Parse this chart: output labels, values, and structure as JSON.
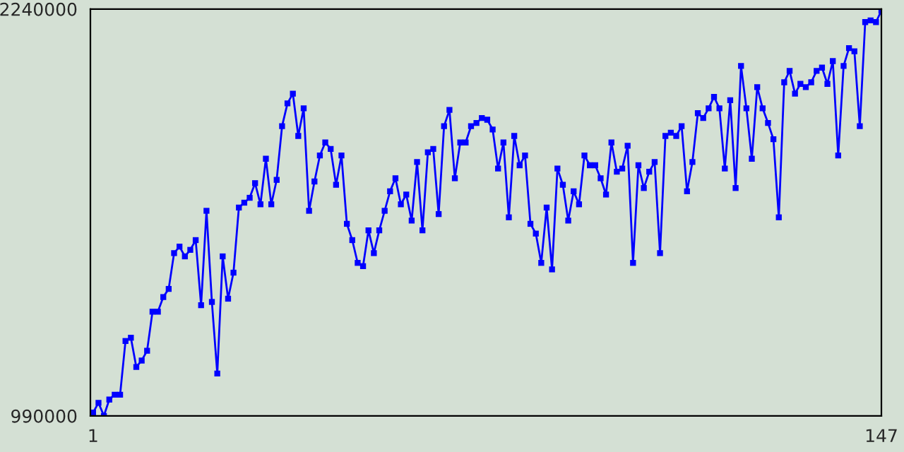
{
  "chart_data": {
    "type": "line",
    "x": [
      1,
      2,
      3,
      4,
      5,
      6,
      7,
      8,
      9,
      10,
      11,
      12,
      13,
      14,
      15,
      16,
      17,
      18,
      19,
      20,
      21,
      22,
      23,
      24,
      25,
      26,
      27,
      28,
      29,
      30,
      31,
      32,
      33,
      34,
      35,
      36,
      37,
      38,
      39,
      40,
      41,
      42,
      43,
      44,
      45,
      46,
      47,
      48,
      49,
      50,
      51,
      52,
      53,
      54,
      55,
      56,
      57,
      58,
      59,
      60,
      61,
      62,
      63,
      64,
      65,
      66,
      67,
      68,
      69,
      70,
      71,
      72,
      73,
      74,
      75,
      76,
      77,
      78,
      79,
      80,
      81,
      82,
      83,
      84,
      85,
      86,
      87,
      88,
      89,
      90,
      91,
      92,
      93,
      94,
      95,
      96,
      97,
      98,
      99,
      100,
      101,
      102,
      103,
      104,
      105,
      106,
      107,
      108,
      109,
      110,
      111,
      112,
      113,
      114,
      115,
      116,
      117,
      118,
      119,
      120,
      121,
      122,
      123,
      124,
      125,
      126,
      127,
      128,
      129,
      130,
      131,
      132,
      133,
      134,
      135,
      136,
      137,
      138,
      139,
      140,
      141,
      142,
      143,
      144,
      145,
      146,
      147
    ],
    "series": [
      {
        "color": "#0000ff",
        "values": [
          1000000,
          1030000,
          990000,
          1040000,
          1055000,
          1055000,
          1220000,
          1230000,
          1140000,
          1160000,
          1190000,
          1310000,
          1310000,
          1355000,
          1380000,
          1490000,
          1510000,
          1480000,
          1500000,
          1530000,
          1330000,
          1620000,
          1340000,
          1120000,
          1480000,
          1350000,
          1430000,
          1630000,
          1645000,
          1660000,
          1705000,
          1640000,
          1780000,
          1640000,
          1715000,
          1880000,
          1950000,
          1980000,
          1850000,
          1935000,
          1620000,
          1710000,
          1790000,
          1830000,
          1810000,
          1700000,
          1790000,
          1580000,
          1530000,
          1460000,
          1450000,
          1560000,
          1490000,
          1560000,
          1620000,
          1680000,
          1720000,
          1640000,
          1670000,
          1590000,
          1770000,
          1560000,
          1800000,
          1810000,
          1610000,
          1880000,
          1930000,
          1720000,
          1830000,
          1830000,
          1880000,
          1890000,
          1905000,
          1900000,
          1870000,
          1750000,
          1830000,
          1600000,
          1850000,
          1760000,
          1790000,
          1580000,
          1550000,
          1460000,
          1630000,
          1440000,
          1750000,
          1700000,
          1590000,
          1680000,
          1640000,
          1790000,
          1760000,
          1760000,
          1720000,
          1670000,
          1830000,
          1740000,
          1750000,
          1820000,
          1460000,
          1760000,
          1690000,
          1740000,
          1770000,
          1490000,
          1850000,
          1860000,
          1850000,
          1880000,
          1680000,
          1770000,
          1920000,
          1905000,
          1935000,
          1970000,
          1935000,
          1750000,
          1960000,
          1690000,
          2065000,
          1935000,
          1780000,
          2000000,
          1935000,
          1890000,
          1840000,
          1600000,
          2015000,
          2050000,
          1980000,
          2010000,
          2000000,
          2015000,
          2050000,
          2060000,
          2010000,
          2080000,
          1790000,
          2065000,
          2120000,
          2110000,
          1880000,
          2200000,
          2205000,
          2200000,
          2235000
        ]
      }
    ],
    "xlim": [
      0.5,
      147
    ],
    "ylim": [
      990000,
      2240000
    ],
    "xticks": [
      1,
      147
    ],
    "yticks": [
      990000,
      2240000
    ],
    "marker": "square",
    "grid": false
  }
}
